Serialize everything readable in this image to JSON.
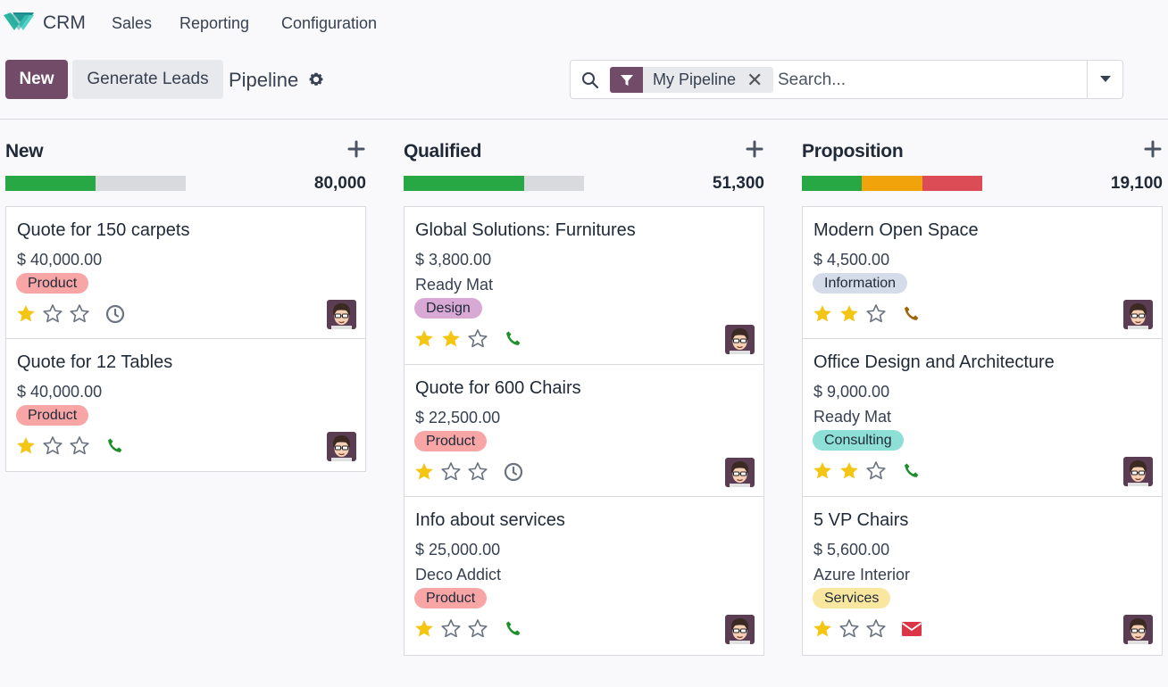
{
  "nav": {
    "app_name": "CRM",
    "menu": [
      "Sales",
      "Reporting",
      "Configuration"
    ]
  },
  "control": {
    "new_label": "New",
    "generate_label": "Generate Leads",
    "page_title": "Pipeline"
  },
  "search": {
    "facet_label": "My Pipeline",
    "placeholder": "Search..."
  },
  "colors": {
    "brand": "#714b67",
    "progress_green": "#28a745",
    "progress_orange": "#f0a30a",
    "progress_red": "#dc4c57",
    "star_filled": "#f3c614",
    "phone": "#1f8f2c"
  },
  "columns": [
    {
      "title": "New",
      "total": "80,000",
      "progress": {
        "green": 0.5,
        "orange": 0,
        "red": 0
      },
      "cards": [
        {
          "title": "Quote for 150 carpets",
          "amount": "$ 40,000.00",
          "company": "",
          "tag": "Product",
          "stars": 1,
          "activity": "clock-icon"
        },
        {
          "title": "Quote for 12 Tables",
          "amount": "$ 40,000.00",
          "company": "",
          "tag": "Product",
          "stars": 1,
          "activity": "phone-icon"
        }
      ]
    },
    {
      "title": "Qualified",
      "total": "51,300",
      "progress": {
        "green": 0.67,
        "orange": 0,
        "red": 0
      },
      "cards": [
        {
          "title": "Global Solutions: Furnitures",
          "amount": "$ 3,800.00",
          "company": "Ready Mat",
          "tag": "Design",
          "stars": 2,
          "activity": "phone-icon"
        },
        {
          "title": "Quote for 600 Chairs",
          "amount": "$ 22,500.00",
          "company": "",
          "tag": "Product",
          "stars": 1,
          "activity": "clock-icon"
        },
        {
          "title": "Info about services",
          "amount": "$ 25,000.00",
          "company": "Deco Addict",
          "tag": "Product",
          "stars": 1,
          "activity": "phone-icon"
        }
      ]
    },
    {
      "title": "Proposition",
      "total": "19,100",
      "progress": {
        "green": 0.333,
        "orange": 0.333,
        "red": 0.334
      },
      "cards": [
        {
          "title": "Modern Open Space",
          "amount": "$ 4,500.00",
          "company": "",
          "tag": "Information",
          "stars": 2,
          "activity": "phone-orange-icon"
        },
        {
          "title": "Office Design and Architecture",
          "amount": "$ 9,000.00",
          "company": "Ready Mat",
          "tag": "Consulting",
          "stars": 2,
          "activity": "phone-icon"
        },
        {
          "title": "5 VP Chairs",
          "amount": "$ 5,600.00",
          "company": "Azure Interior",
          "tag": "Services",
          "stars": 1,
          "activity": "envelope-icon"
        }
      ]
    }
  ]
}
